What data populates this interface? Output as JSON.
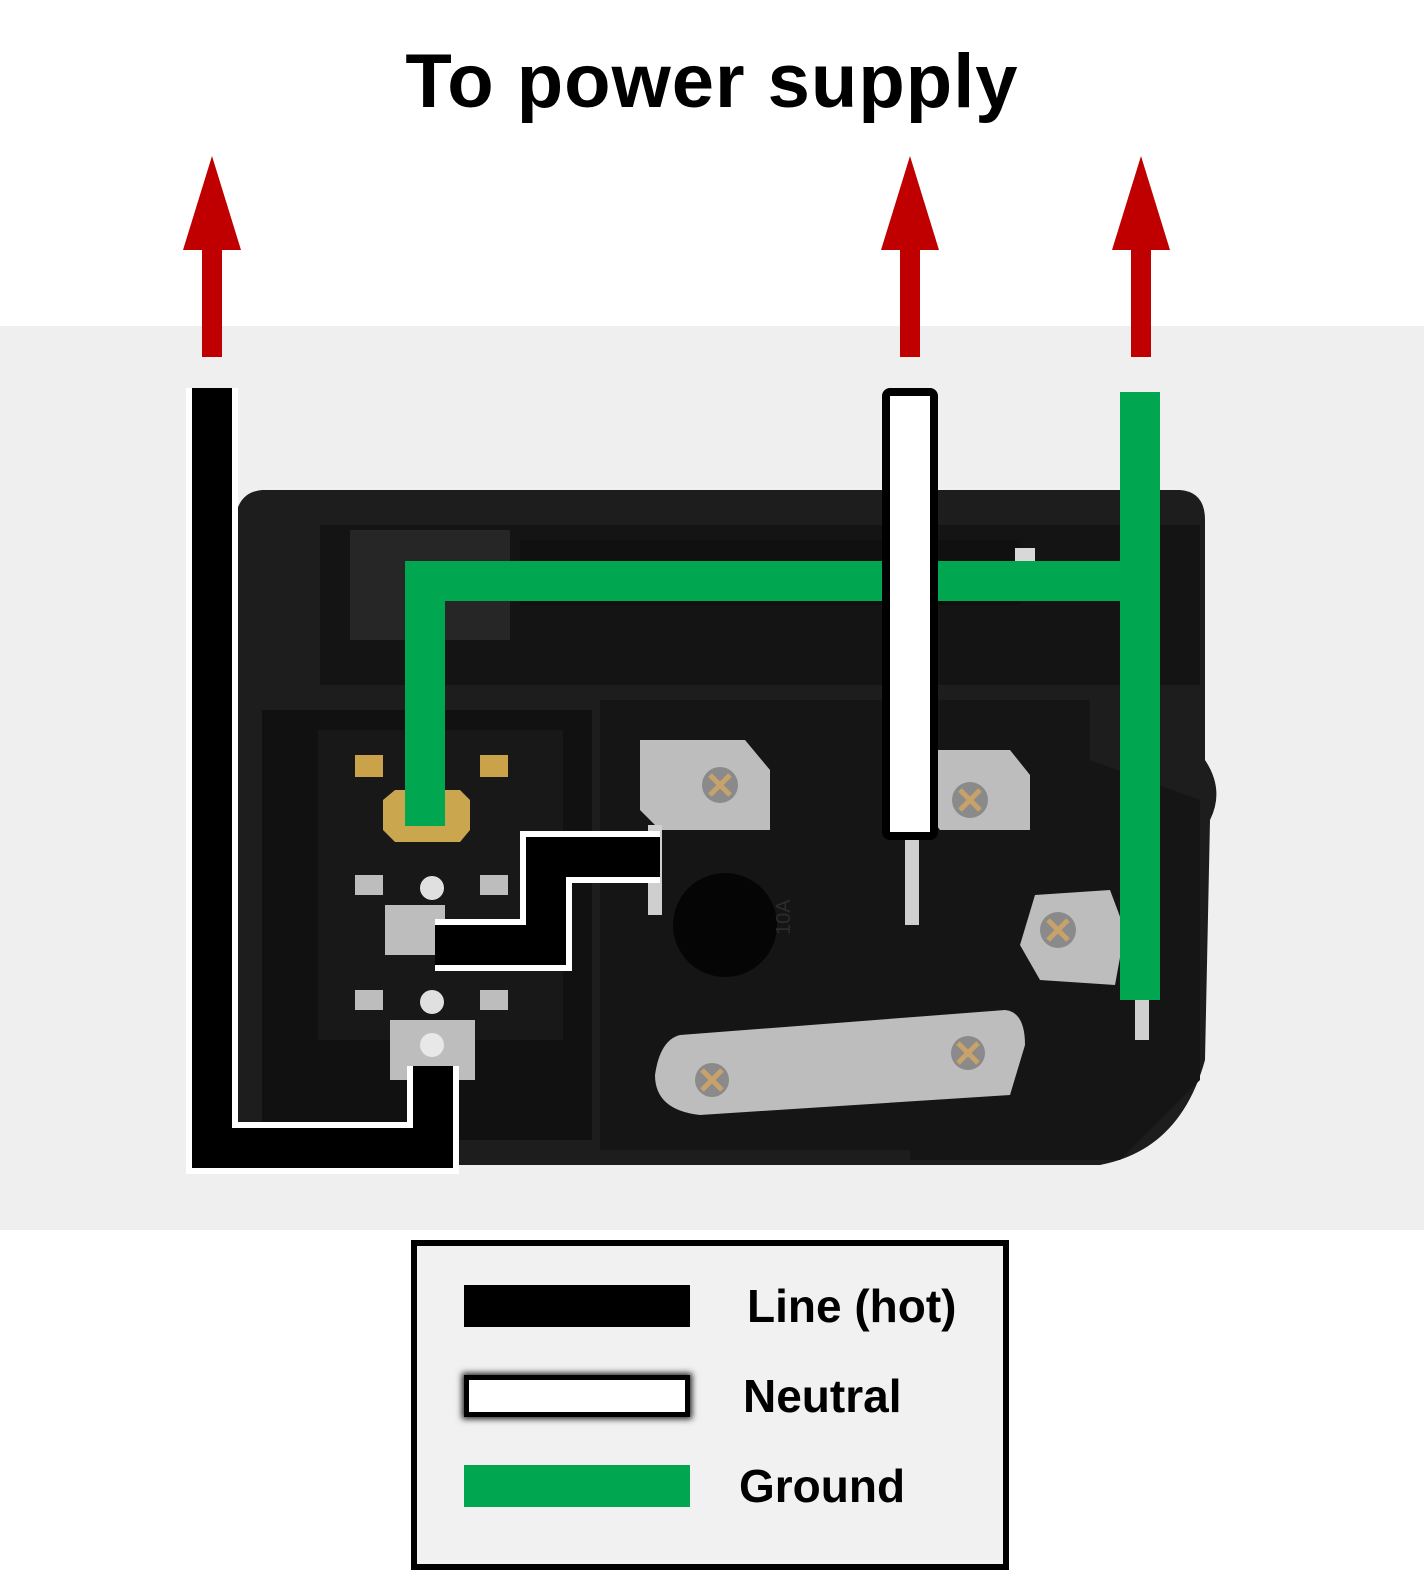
{
  "title": "To power supply",
  "legend": {
    "items": [
      {
        "label": "Line (hot)",
        "style": "line"
      },
      {
        "label": "Neutral",
        "style": "neutral"
      },
      {
        "label": "Ground",
        "style": "ground"
      }
    ]
  },
  "colors": {
    "line": "#000000",
    "neutral": "#ffffff",
    "ground": "#00a650",
    "arrow": "#c00000",
    "photo_background": "#efefef",
    "connector_body": "#1c1c1c"
  },
  "connector_markings": [
    "10A"
  ]
}
